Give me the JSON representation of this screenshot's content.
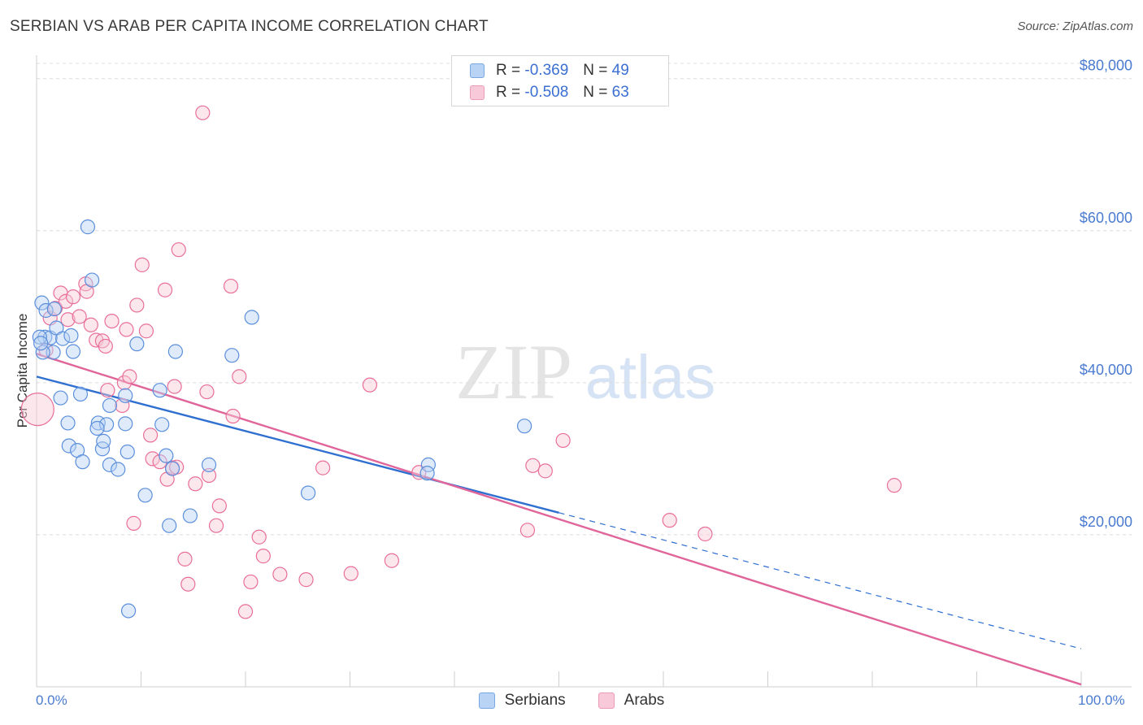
{
  "header": {
    "title": "SERBIAN VS ARAB PER CAPITA INCOME CORRELATION CHART",
    "source": "Source: ZipAtlas.com"
  },
  "legend": {
    "serbians": {
      "r_label": "R =",
      "r_value": "-0.369",
      "n_label": "N =",
      "n_value": "49"
    },
    "arabs": {
      "r_label": "R =",
      "r_value": "-0.508",
      "n_label": "N =",
      "n_value": "63"
    }
  },
  "watermark": {
    "zip": "ZIP",
    "atlas": "atlas"
  },
  "colors": {
    "serbians": "#5b8fdc",
    "serbians_fill": "#b8d3f3",
    "arabs": "#e86f9a",
    "arabs_fill": "#f8c9d8",
    "tick_label": "#4a7bd0"
  },
  "chart_data": {
    "type": "scatter",
    "title": "SERBIAN VS ARAB PER CAPITA INCOME CORRELATION CHART",
    "xlabel": "",
    "ylabel": "Per Capita Income",
    "xlim": [
      0,
      100
    ],
    "ylim": [
      0,
      82000
    ],
    "x_tick_labels": [
      "0.0%",
      "100.0%"
    ],
    "y_ticks": [
      {
        "value": 20000,
        "label": "$20,000"
      },
      {
        "value": 40000,
        "label": "$40,000"
      },
      {
        "value": 60000,
        "label": "$60,000"
      },
      {
        "value": 80000,
        "label": "$80,000"
      }
    ],
    "legend_position": "top-center",
    "series": [
      {
        "name": "Serbians",
        "points": [
          [
            0.5,
            50500
          ],
          [
            0.9,
            49500
          ],
          [
            1.7,
            49700
          ],
          [
            0.8,
            46000
          ],
          [
            1.3,
            45900
          ],
          [
            1.6,
            44000
          ],
          [
            0.6,
            44000
          ],
          [
            1.9,
            47200
          ],
          [
            2.5,
            45800
          ],
          [
            3.3,
            46200
          ],
          [
            3.5,
            44100
          ],
          [
            4.9,
            60500
          ],
          [
            5.3,
            53500
          ],
          [
            2.3,
            38000
          ],
          [
            4.2,
            38500
          ],
          [
            7.0,
            37000
          ],
          [
            8.5,
            38300
          ],
          [
            3.0,
            34700
          ],
          [
            5.9,
            34700
          ],
          [
            6.7,
            34500
          ],
          [
            5.8,
            34000
          ],
          [
            8.5,
            34600
          ],
          [
            3.1,
            31700
          ],
          [
            3.9,
            31100
          ],
          [
            6.3,
            31300
          ],
          [
            6.4,
            32300
          ],
          [
            8.7,
            30900
          ],
          [
            4.4,
            29600
          ],
          [
            7.0,
            29200
          ],
          [
            7.8,
            28600
          ],
          [
            9.6,
            45100
          ],
          [
            11.8,
            39000
          ],
          [
            13.3,
            44100
          ],
          [
            12.0,
            34500
          ],
          [
            12.4,
            30400
          ],
          [
            13.0,
            28700
          ],
          [
            10.4,
            25200
          ],
          [
            12.7,
            21200
          ],
          [
            14.7,
            22500
          ],
          [
            16.5,
            29200
          ],
          [
            18.7,
            43600
          ],
          [
            20.6,
            48600
          ],
          [
            26.0,
            25500
          ],
          [
            37.5,
            29200
          ],
          [
            37.4,
            28100
          ],
          [
            46.7,
            34300
          ],
          [
            8.8,
            10000
          ],
          [
            0.3,
            46000
          ],
          [
            0.4,
            45200
          ]
        ]
      },
      {
        "name": "Arabs",
        "points": [
          [
            0.1,
            36500
          ],
          [
            0.9,
            44300
          ],
          [
            1.3,
            48500
          ],
          [
            1.8,
            49800
          ],
          [
            2.3,
            51800
          ],
          [
            2.8,
            50700
          ],
          [
            3.0,
            48300
          ],
          [
            3.5,
            51300
          ],
          [
            4.1,
            48700
          ],
          [
            4.7,
            53000
          ],
          [
            4.8,
            52000
          ],
          [
            5.2,
            47600
          ],
          [
            5.7,
            45600
          ],
          [
            6.3,
            45500
          ],
          [
            6.6,
            44800
          ],
          [
            6.8,
            39000
          ],
          [
            7.2,
            48100
          ],
          [
            8.2,
            37000
          ],
          [
            8.4,
            40000
          ],
          [
            8.6,
            47000
          ],
          [
            8.9,
            40800
          ],
          [
            9.6,
            50200
          ],
          [
            10.1,
            55500
          ],
          [
            10.5,
            46800
          ],
          [
            10.9,
            33100
          ],
          [
            11.1,
            30000
          ],
          [
            11.8,
            29600
          ],
          [
            12.3,
            52200
          ],
          [
            12.5,
            27300
          ],
          [
            13.0,
            28800
          ],
          [
            13.2,
            39500
          ],
          [
            13.4,
            28900
          ],
          [
            13.6,
            57500
          ],
          [
            14.2,
            16800
          ],
          [
            14.5,
            13500
          ],
          [
            15.2,
            26700
          ],
          [
            15.9,
            75500
          ],
          [
            16.3,
            38800
          ],
          [
            16.5,
            27800
          ],
          [
            17.2,
            21200
          ],
          [
            17.5,
            23800
          ],
          [
            18.6,
            52700
          ],
          [
            18.8,
            35600
          ],
          [
            19.4,
            40800
          ],
          [
            20.0,
            9900
          ],
          [
            20.5,
            13800
          ],
          [
            21.3,
            19700
          ],
          [
            21.7,
            17200
          ],
          [
            23.3,
            14800
          ],
          [
            25.8,
            14100
          ],
          [
            27.4,
            28800
          ],
          [
            30.1,
            14900
          ],
          [
            31.9,
            39700
          ],
          [
            34.0,
            16600
          ],
          [
            36.6,
            28200
          ],
          [
            47.5,
            29100
          ],
          [
            48.7,
            28400
          ],
          [
            47.0,
            20600
          ],
          [
            50.4,
            32400
          ],
          [
            60.6,
            21900
          ],
          [
            64.0,
            20100
          ],
          [
            82.1,
            26500
          ],
          [
            9.3,
            21500
          ]
        ]
      }
    ],
    "trendlines": [
      {
        "series": "Serbians",
        "x0": 0,
        "y0": 40800,
        "x1": 50,
        "y1": 22900,
        "dashed_to_x": 100,
        "dashed_to_y": 5000
      },
      {
        "series": "Arabs",
        "x0": 0,
        "y0": 43800,
        "x1": 100,
        "y1": 300
      }
    ]
  }
}
